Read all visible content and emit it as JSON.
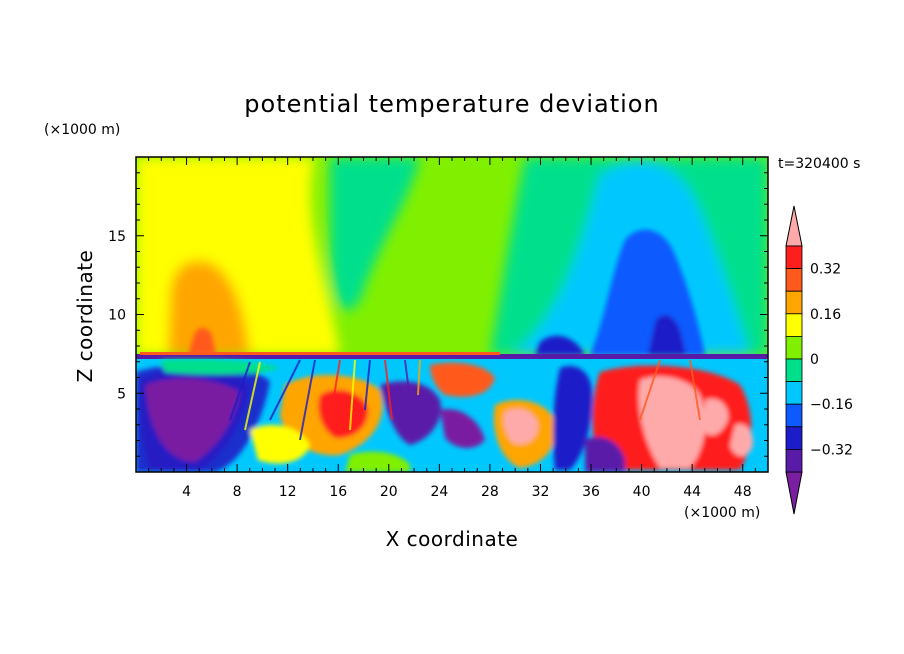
{
  "chart_data": {
    "type": "heatmap",
    "title": "potential temperature deviation",
    "xlabel": "X coordinate",
    "ylabel": "Z coordinate",
    "x_unit": "(×1000 m)",
    "y_unit": "(×1000 m)",
    "time_label": "t=320400 s",
    "xlim": [
      0,
      50
    ],
    "ylim": [
      0,
      20
    ],
    "x_ticks": [
      4,
      8,
      12,
      16,
      20,
      24,
      28,
      32,
      36,
      40,
      44,
      48
    ],
    "y_ticks": [
      5,
      10,
      15
    ],
    "colorbar": {
      "levels": [
        -0.4,
        -0.32,
        -0.24,
        -0.16,
        -0.08,
        0,
        0.08,
        0.16,
        0.24,
        0.32,
        0.4
      ],
      "labels": [
        "-0.32",
        "-0.16",
        "0",
        "0.16",
        "0.32"
      ],
      "colors": [
        "#7a1fa2",
        "#5a1aa8",
        "#1c1cc8",
        "#0f5aff",
        "#00c8ff",
        "#00e08c",
        "#80f000",
        "#ffff00",
        "#ffa500",
        "#ff5a1e",
        "#ff1e1e",
        "#ffaaaa"
      ]
    },
    "features": [
      {
        "name": "upper-positive-plume",
        "x_center": 6,
        "z_center": 13,
        "value": 0.16
      },
      {
        "name": "upper-positive-core",
        "x_center": 6,
        "z_center": 10,
        "value": 0.24
      },
      {
        "name": "upper-negative-plume",
        "x_center": 42,
        "z_center": 12,
        "value": -0.24
      },
      {
        "name": "upper-negative-core",
        "x_center": 42,
        "z_center": 9,
        "value": -0.32
      },
      {
        "name": "lower-negative-left",
        "x_center": 5,
        "z_center": 3,
        "value": -0.4
      },
      {
        "name": "lower-positive-right",
        "x_center": 42,
        "z_center": 3,
        "value": 0.4
      }
    ]
  }
}
